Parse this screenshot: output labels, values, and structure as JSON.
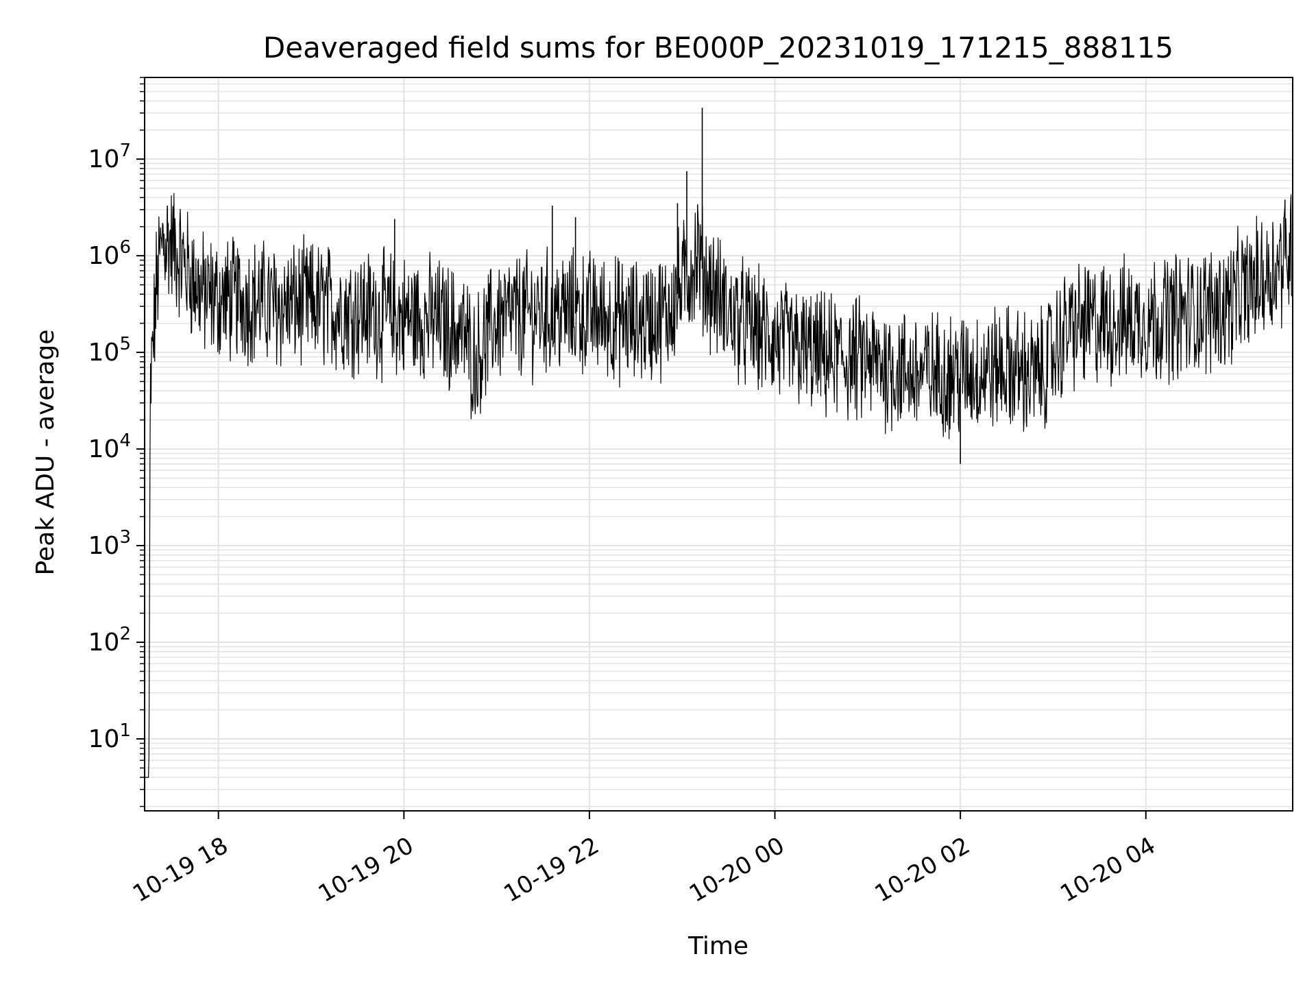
{
  "chart_data": {
    "type": "line",
    "title": "Deaveraged field sums for BE000P_20231019_171215_888115",
    "xlabel": "Time",
    "ylabel": "Peak ADU - average",
    "x_scale": "time",
    "y_scale": "log",
    "xlim": [
      "2023-10-19T17:12:15",
      "2023-10-20T05:35:00"
    ],
    "ylim": [
      1.8,
      70000000
    ],
    "x_ticks": [
      {
        "value": "2023-10-19T18:00",
        "label": "10-19 18"
      },
      {
        "value": "2023-10-19T20:00",
        "label": "10-19 20"
      },
      {
        "value": "2023-10-19T22:00",
        "label": "10-19 22"
      },
      {
        "value": "2023-10-20T00:00",
        "label": "10-20 00"
      },
      {
        "value": "2023-10-20T02:00",
        "label": "10-20 02"
      },
      {
        "value": "2023-10-20T04:00",
        "label": "10-20 04"
      }
    ],
    "y_ticks": [
      {
        "value": 10,
        "base": "10",
        "exp": "1"
      },
      {
        "value": 100,
        "base": "10",
        "exp": "2"
      },
      {
        "value": 1000,
        "base": "10",
        "exp": "3"
      },
      {
        "value": 10000,
        "base": "10",
        "exp": "4"
      },
      {
        "value": 100000,
        "base": "10",
        "exp": "5"
      },
      {
        "value": 1000000,
        "base": "10",
        "exp": "6"
      },
      {
        "value": 10000000,
        "base": "10",
        "exp": "7"
      }
    ],
    "grid": true,
    "legend": "none",
    "series": [
      {
        "color": "#000000",
        "points": [
          [
            "2023-10-19T17:12",
            4
          ],
          [
            "2023-10-19T17:14",
            4
          ],
          [
            "2023-10-19T17:15",
            4
          ],
          [
            "2023-10-19T17:16",
            40000
          ],
          [
            "2023-10-19T17:20",
            500000
          ],
          [
            "2023-10-19T17:24",
            1500000
          ],
          [
            "2023-10-19T17:30",
            1300000
          ],
          [
            "2023-10-19T17:40",
            700000
          ],
          [
            "2023-10-19T17:50",
            400000
          ],
          [
            "2023-10-19T18:00",
            350000
          ],
          [
            "2023-10-19T18:20",
            350000
          ],
          [
            "2023-10-19T18:40",
            300000
          ],
          [
            "2023-10-19T19:00",
            320000
          ],
          [
            "2023-10-19T19:20",
            280000
          ],
          [
            "2023-10-19T19:40",
            260000
          ],
          [
            "2023-10-19T20:00",
            230000
          ],
          [
            "2023-10-19T20:20",
            220000
          ],
          [
            "2023-10-19T20:40",
            150000
          ],
          [
            "2023-10-19T20:45",
            80000
          ],
          [
            "2023-10-19T21:00",
            220000
          ],
          [
            "2023-10-19T21:30",
            260000
          ],
          [
            "2023-10-19T22:00",
            250000
          ],
          [
            "2023-10-19T22:30",
            200000
          ],
          [
            "2023-10-19T22:50",
            250000
          ],
          [
            "2023-10-19T23:05",
            700000
          ],
          [
            "2023-10-19T23:10",
            1000000
          ],
          [
            "2023-10-19T23:15",
            600000
          ],
          [
            "2023-10-19T23:30",
            250000
          ],
          [
            "2023-10-19T23:45",
            180000
          ],
          [
            "2023-10-20T00:00",
            130000
          ],
          [
            "2023-10-20T00:30",
            90000
          ],
          [
            "2023-10-20T01:00",
            80000
          ],
          [
            "2023-10-20T01:30",
            60000
          ],
          [
            "2023-10-20T02:00",
            60000
          ],
          [
            "2023-10-20T02:30",
            70000
          ],
          [
            "2023-10-20T02:50",
            55000
          ],
          [
            "2023-10-20T03:10",
            180000
          ],
          [
            "2023-10-20T03:30",
            200000
          ],
          [
            "2023-10-20T04:00",
            220000
          ],
          [
            "2023-10-20T04:30",
            250000
          ],
          [
            "2023-10-20T04:50",
            300000
          ],
          [
            "2023-10-20T05:10",
            500000
          ],
          [
            "2023-10-20T05:25",
            800000
          ],
          [
            "2023-10-20T05:34",
            1200000
          ]
        ]
      }
    ],
    "annotations": [
      {
        "x": "2023-10-19T17:27",
        "y": 3300000
      },
      {
        "x": "2023-10-19T19:54",
        "y": 2400000
      },
      {
        "x": "2023-10-19T21:36",
        "y": 3300000
      },
      {
        "x": "2023-10-19T21:51",
        "y": 2500000
      },
      {
        "x": "2023-10-19T22:57",
        "y": 3500000
      },
      {
        "x": "2023-10-19T23:03",
        "y": 7500000
      },
      {
        "x": "2023-10-19T23:10",
        "y": 3400000
      },
      {
        "x": "2023-10-19T23:13",
        "y": 34000000
      },
      {
        "x": "2023-10-20T02:00",
        "y": 7000
      },
      {
        "x": "2023-10-20T05:30",
        "y": 3800000
      }
    ]
  }
}
